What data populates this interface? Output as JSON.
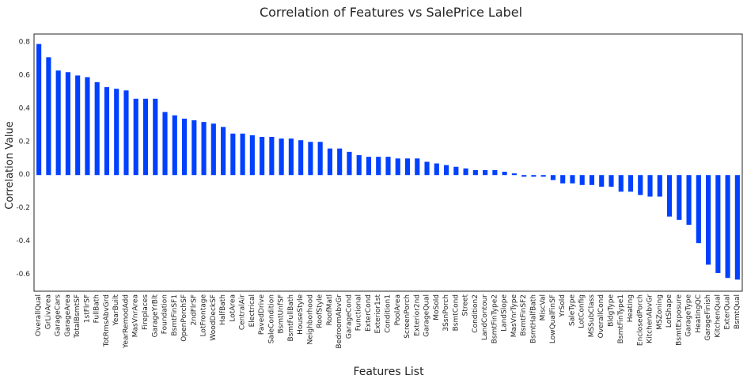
{
  "chart_data": {
    "type": "bar",
    "title": "Correlation of Features vs SalePrice Label",
    "xlabel": "Features List",
    "ylabel": "Correlation Value",
    "ylim": [
      -0.7,
      0.85
    ],
    "yticks": [
      -0.6,
      -0.4,
      -0.2,
      0.0,
      0.2,
      0.4,
      0.6,
      0.8
    ],
    "ytick_labels": [
      "-0.6",
      "-0.4",
      "-0.2",
      "0.0",
      "0.2",
      "0.4",
      "0.6",
      "0.8"
    ],
    "grid": false,
    "color": "#0040ff",
    "categories": [
      "OverallQual",
      "GrLivArea",
      "GarageCars",
      "GarageArea",
      "TotalBsmtSF",
      "1stFlrSF",
      "FullBath",
      "TotRmsAbvGrd",
      "YearBuilt",
      "YearRemodAdd",
      "MasVnrArea",
      "Fireplaces",
      "GarageYrBlt",
      "Foundation",
      "BsmtFinSF1",
      "OpenPorchSF",
      "2ndFlrSF",
      "LotFrontage",
      "WoodDeckSF",
      "HalfBath",
      "LotArea",
      "CentralAir",
      "Electrical",
      "PavedDrive",
      "SaleCondition",
      "BsmtUnfSF",
      "BsmtFullBath",
      "HouseStyle",
      "Neighborhood",
      "RoofStyle",
      "RoofMatl",
      "BedroomAbvGr",
      "GarageCond",
      "Functional",
      "ExterCond",
      "Exterior1st",
      "Condition1",
      "PoolArea",
      "ScreenPorch",
      "Exterior2nd",
      "GarageQual",
      "MoSold",
      "3SsnPorch",
      "BsmtCond",
      "Street",
      "Condition2",
      "LandContour",
      "BsmtFinType2",
      "LandSlope",
      "MasVnrType",
      "BsmtFinSF2",
      "BsmtHalfBath",
      "MiscVal",
      "LowQualFinSF",
      "YrSold",
      "SaleType",
      "LotConfig",
      "MSSubClass",
      "OverallCond",
      "BldgType",
      "BsmtFinType1",
      "Heating",
      "EnclosedPorch",
      "KitchenAbvGr",
      "MSZoning",
      "LotShape",
      "BsmtExposure",
      "GarageType",
      "HeatingQC",
      "GarageFinish",
      "KitchenQual",
      "ExterQual",
      "BsmtQual"
    ],
    "values": [
      0.79,
      0.71,
      0.63,
      0.62,
      0.6,
      0.59,
      0.56,
      0.53,
      0.52,
      0.51,
      0.46,
      0.46,
      0.46,
      0.38,
      0.36,
      0.34,
      0.33,
      0.32,
      0.31,
      0.29,
      0.25,
      0.25,
      0.24,
      0.23,
      0.23,
      0.22,
      0.22,
      0.21,
      0.2,
      0.2,
      0.16,
      0.16,
      0.14,
      0.12,
      0.11,
      0.11,
      0.11,
      0.1,
      0.1,
      0.1,
      0.08,
      0.07,
      0.06,
      0.05,
      0.04,
      0.03,
      0.03,
      0.03,
      0.02,
      0.01,
      -0.01,
      -0.01,
      -0.01,
      -0.03,
      -0.05,
      -0.05,
      -0.06,
      -0.06,
      -0.07,
      -0.07,
      -0.1,
      -0.1,
      -0.12,
      -0.13,
      -0.13,
      -0.25,
      -0.27,
      -0.3,
      -0.41,
      -0.54,
      -0.59,
      -0.62,
      -0.63
    ]
  }
}
